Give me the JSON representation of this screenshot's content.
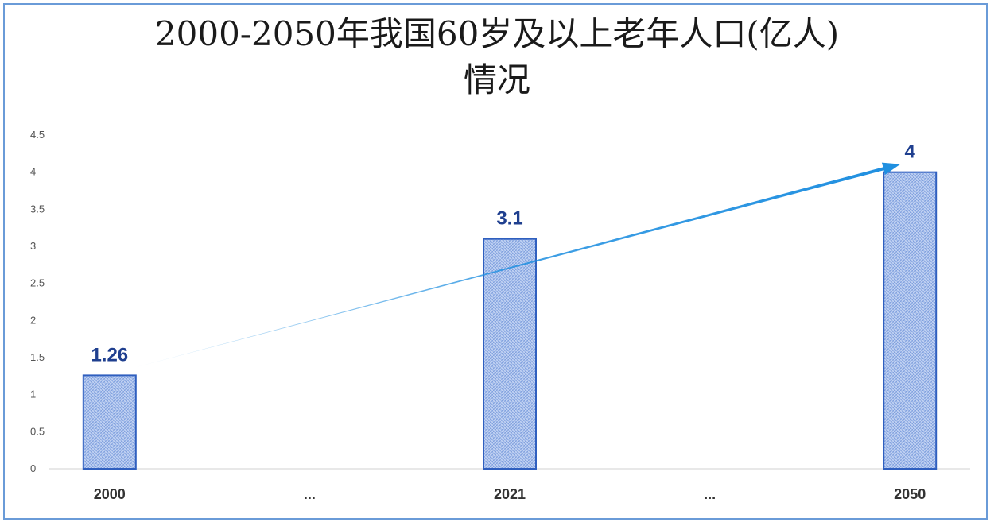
{
  "chart_data": {
    "type": "bar",
    "title_line1": "2000-2050年我国60岁及以上老年人口(亿人)",
    "title_line2": "情况",
    "categories": [
      "2000",
      "...",
      "2021",
      "...",
      "2050"
    ],
    "values": [
      1.26,
      null,
      3.1,
      null,
      4
    ],
    "data_labels": [
      "1.26",
      "",
      "3.1",
      "",
      "4"
    ],
    "ylim": [
      0,
      4.5
    ],
    "yticks": [
      "0",
      "0.5",
      "1",
      "1.5",
      "2",
      "2.5",
      "3",
      "3.5",
      "4",
      "4.5"
    ],
    "xlabel": "",
    "ylabel": "",
    "grid": false,
    "colors": {
      "bar_fill": "#a9c0ec",
      "bar_stroke": "#2f5fbf",
      "arrow": "#1f8fe0",
      "label": "#1f3f8f",
      "border": "#6a9bd8"
    }
  }
}
